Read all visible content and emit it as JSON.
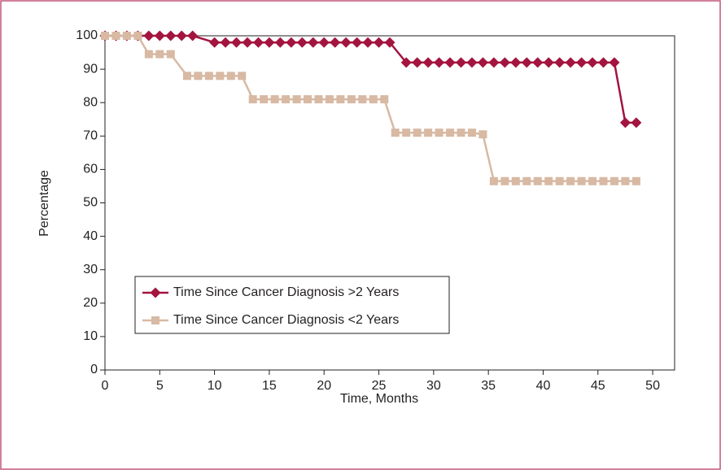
{
  "chart_data": {
    "type": "line",
    "xlabel": "Time, Months",
    "ylabel": "Percentage",
    "xlim": [
      0,
      52
    ],
    "ylim": [
      0,
      100
    ],
    "xticks": [
      0,
      5,
      10,
      15,
      20,
      25,
      30,
      35,
      40,
      45,
      50
    ],
    "yticks": [
      0,
      10,
      20,
      30,
      40,
      50,
      60,
      70,
      80,
      90,
      100
    ],
    "grid": false,
    "legend": "lower left",
    "series": [
      {
        "name": "Time Since Cancer Diagnosis >2 Years",
        "color": "#a3143f",
        "marker": "diamond",
        "x": [
          0,
          1,
          2,
          3,
          4,
          5,
          6,
          7,
          8,
          10,
          11,
          12,
          13,
          14,
          15,
          16,
          17,
          18,
          19,
          20,
          21,
          22,
          23,
          24,
          25,
          26,
          27.5,
          28.5,
          29.5,
          30.5,
          31.5,
          32.5,
          33.5,
          34.5,
          35.5,
          36.5,
          37.5,
          38.5,
          39.5,
          40.5,
          41.5,
          42.5,
          43.5,
          44.5,
          45.5,
          46.5,
          47.5,
          48.5
        ],
        "values": [
          100,
          100,
          100,
          100,
          100,
          100,
          100,
          100,
          100,
          98,
          98,
          98,
          98,
          98,
          98,
          98,
          98,
          98,
          98,
          98,
          98,
          98,
          98,
          98,
          98,
          98,
          92,
          92,
          92,
          92,
          92,
          92,
          92,
          92,
          92,
          92,
          92,
          92,
          92,
          92,
          92,
          92,
          92,
          92,
          92,
          92,
          74,
          74
        ]
      },
      {
        "name": "Time Since Cancer Diagnosis <2 Years",
        "color": "#d8b9a3",
        "marker": "square",
        "x": [
          0,
          1,
          2,
          3,
          4,
          5,
          6,
          7.5,
          8.5,
          9.5,
          10.5,
          11.5,
          12.5,
          13.5,
          14.5,
          15.5,
          16.5,
          17.5,
          18.5,
          19.5,
          20.5,
          21.5,
          22.5,
          23.5,
          24.5,
          25.5,
          26.5,
          27.5,
          28.5,
          29.5,
          30.5,
          31.5,
          32.5,
          33.5,
          34.5,
          35.5,
          36.5,
          37.5,
          38.5,
          39.5,
          40.5,
          41.5,
          42.5,
          43.5,
          44.5,
          45.5,
          46.5,
          47.5,
          48.5
        ],
        "values": [
          100,
          100,
          100,
          100,
          94.5,
          94.5,
          94.5,
          88,
          88,
          88,
          88,
          88,
          88,
          81,
          81,
          81,
          81,
          81,
          81,
          81,
          81,
          81,
          81,
          81,
          81,
          81,
          71,
          71,
          71,
          71,
          71,
          71,
          71,
          71,
          70.5,
          56.5,
          56.5,
          56.5,
          56.5,
          56.5,
          56.5,
          56.5,
          56.5,
          56.5,
          56.5,
          56.5,
          56.5,
          56.5,
          56.5
        ]
      }
    ]
  }
}
